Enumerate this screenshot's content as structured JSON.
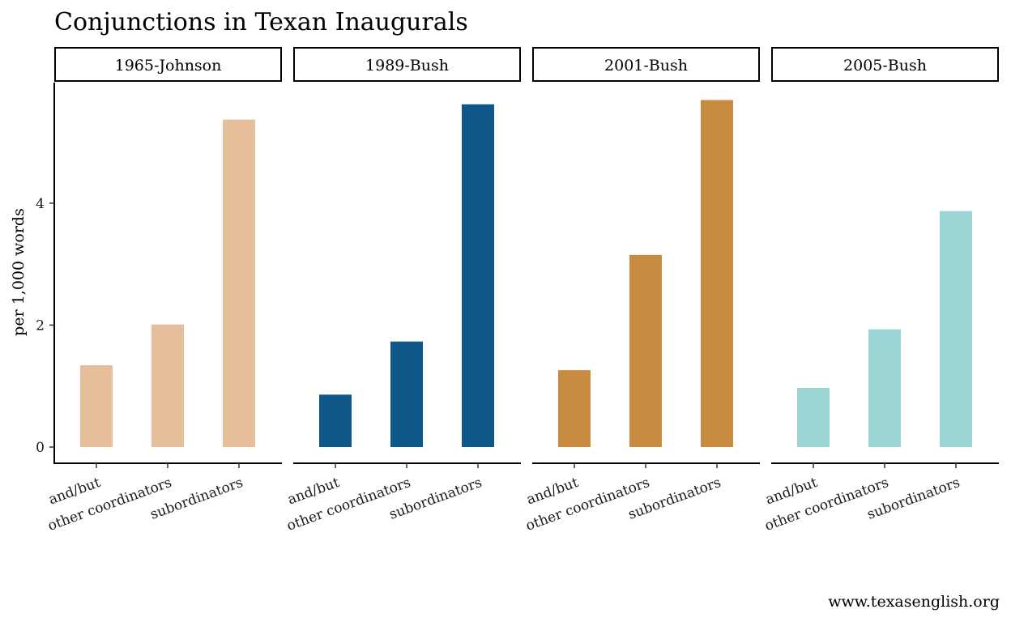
{
  "chart_data": {
    "type": "bar",
    "title": "Conjunctions in Texan Inaugurals",
    "ylabel": "per 1,000 words",
    "xlabel": "",
    "ylim": [
      0,
      5.9
    ],
    "yticks": [
      0,
      2,
      4
    ],
    "categories": [
      "and/but",
      "other coordinators",
      "subordinators"
    ],
    "grid": false,
    "caption": "www.texasenglish.org",
    "panels": [
      {
        "name": "1965-Johnson",
        "color": "#E6BE9B",
        "values": [
          1.34,
          2.01,
          5.37
        ]
      },
      {
        "name": "1989-Bush",
        "color": "#0F5788",
        "values": [
          0.86,
          1.73,
          5.62
        ]
      },
      {
        "name": "2001-Bush",
        "color": "#C98B3F",
        "values": [
          1.26,
          3.15,
          5.69
        ]
      },
      {
        "name": "2005-Bush",
        "color": "#9DD6D7",
        "values": [
          0.97,
          1.93,
          3.87
        ]
      }
    ]
  }
}
